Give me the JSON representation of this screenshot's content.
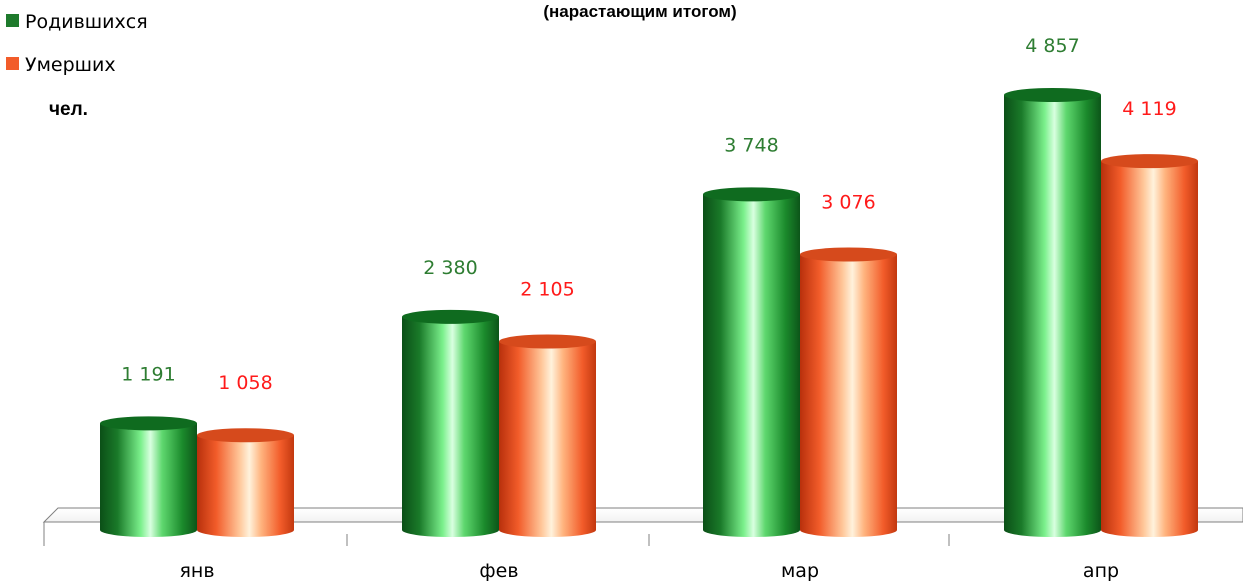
{
  "chart_data": {
    "type": "bar",
    "title": "(нарастающим итогом)",
    "unit_label": "чел.",
    "categories": [
      "янв",
      "фев",
      "мар",
      "апр"
    ],
    "series": [
      {
        "name": "Родившихся",
        "color": "#1e7a2c",
        "label_color": "#2e7d32",
        "values": [
          1191,
          2380,
          3748,
          4857
        ],
        "value_labels": [
          "1 191",
          "2 380",
          "3 748",
          "4 857"
        ]
      },
      {
        "name": "Умерших",
        "color": "#f25c2a",
        "label_color": "#ff1a1a",
        "values": [
          1058,
          2105,
          3076,
          4119
        ],
        "value_labels": [
          "1 058",
          "2 105",
          "3 076",
          "4 119"
        ]
      }
    ],
    "ylim": [
      0,
      5500
    ],
    "grid": false,
    "legend_position": "top-left"
  }
}
